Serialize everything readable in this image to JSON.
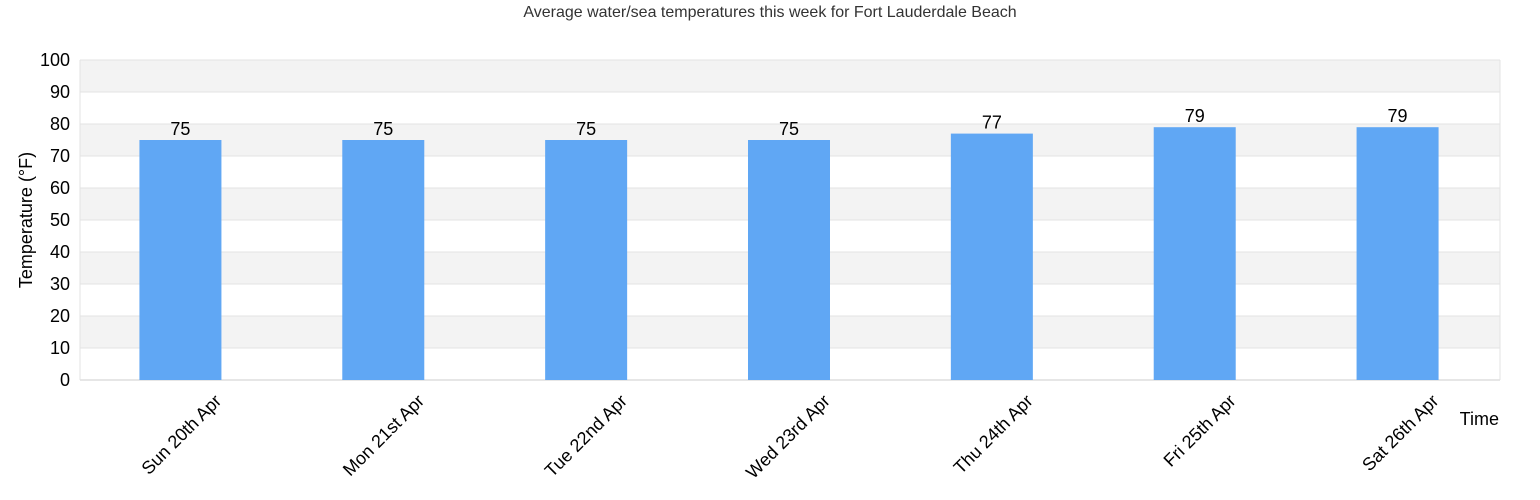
{
  "chart_data": {
    "type": "bar",
    "title": "Average water/sea temperatures this week for Fort Lauderdale Beach",
    "xlabel": "Time",
    "ylabel": "Temperature (°F)",
    "categories": [
      "Sun 20th Apr",
      "Mon 21st Apr",
      "Tue 22nd Apr",
      "Wed 23rd Apr",
      "Thu 24th Apr",
      "Fri 25th Apr",
      "Sat 26th Apr"
    ],
    "values": [
      75,
      75,
      75,
      75,
      77,
      79,
      79
    ],
    "data_labels": [
      "75",
      "75",
      "75",
      "75",
      "77",
      "79",
      "79"
    ],
    "ylim": [
      0,
      100
    ],
    "yticks": [
      0,
      10,
      20,
      30,
      40,
      50,
      60,
      70,
      80,
      90,
      100
    ],
    "ytick_labels": [
      "0",
      "10",
      "20",
      "30",
      "40",
      "50",
      "60",
      "70",
      "80",
      "90",
      "100"
    ],
    "grid": true,
    "legend": "none",
    "colors": {
      "bar": "#60a7f4",
      "band": "#f3f3f3",
      "grid": "#e3e3e3",
      "axis": "#cccccc"
    }
  }
}
